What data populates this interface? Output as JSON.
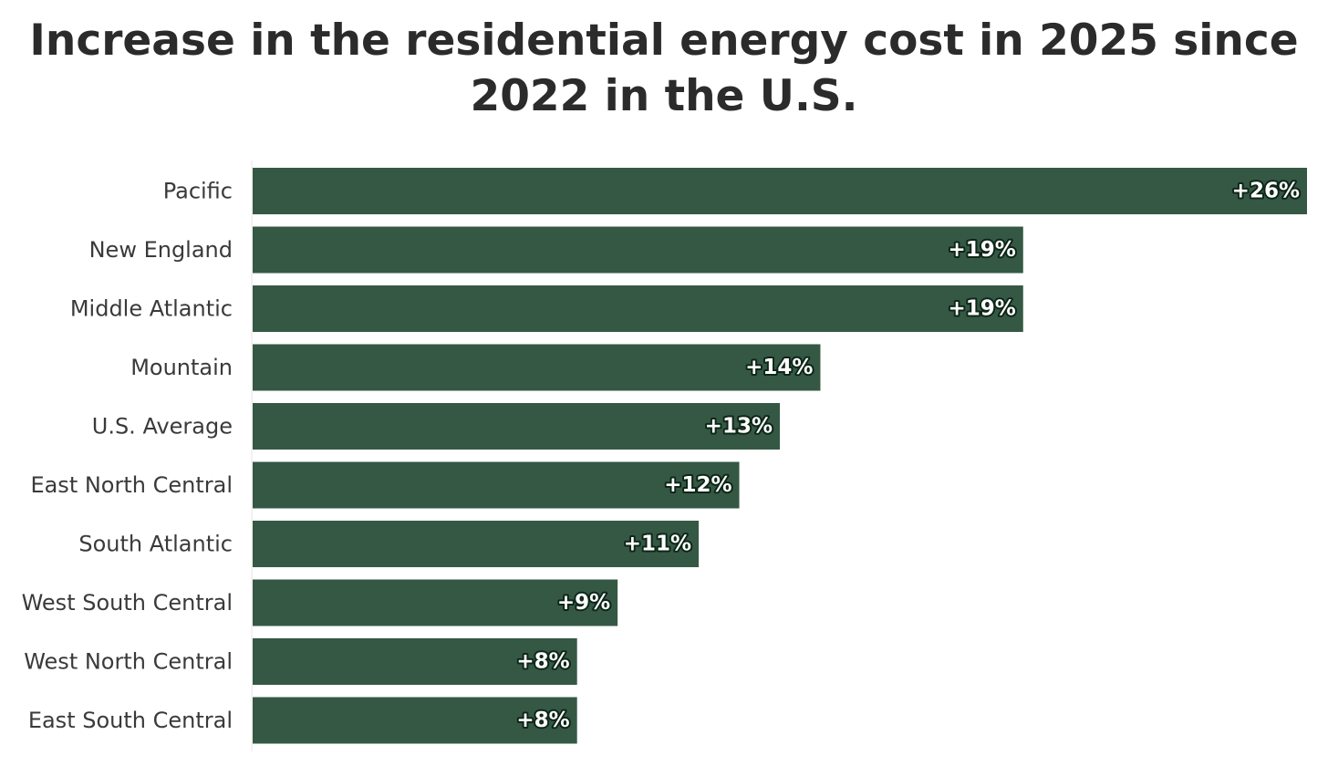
{
  "chart_data": {
    "type": "bar",
    "orientation": "horizontal",
    "title": "Increase in the residential energy cost in 2025 since 2022 in the U.S.",
    "categories": [
      "Pacific",
      "New England",
      "Middle Atlantic",
      "Mountain",
      "U.S. Average",
      "East North Central",
      "South Atlantic",
      "West South Central",
      "West North Central",
      "East South Central"
    ],
    "values": [
      26,
      19,
      19,
      14,
      13,
      12,
      11,
      9,
      8,
      8
    ],
    "value_labels": [
      "+26%",
      "+19%",
      "+19%",
      "+14%",
      "+13%",
      "+12%",
      "+11%",
      "+9%",
      "+8%",
      "+8%"
    ],
    "unit": "%",
    "xlim": [
      0,
      26
    ],
    "bar_color": "#355844",
    "grid": false,
    "legend": "none"
  }
}
